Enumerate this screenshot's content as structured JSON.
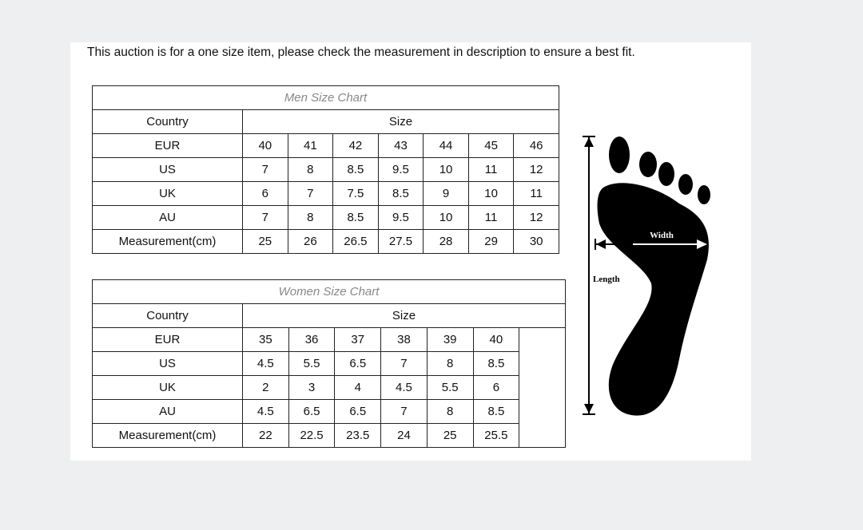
{
  "notice": "This auction is for a one size item, please check the measurement in description to ensure a best fit.",
  "men": {
    "title": "Men Size Chart",
    "country_label": "Country",
    "size_label": "Size",
    "rows": [
      {
        "label": "EUR",
        "values": [
          "40",
          "41",
          "42",
          "43",
          "44",
          "45",
          "46"
        ]
      },
      {
        "label": "US",
        "values": [
          "7",
          "8",
          "8.5",
          "9.5",
          "10",
          "11",
          "12"
        ]
      },
      {
        "label": "UK",
        "values": [
          "6",
          "7",
          "7.5",
          "8.5",
          "9",
          "10",
          "11"
        ]
      },
      {
        "label": "AU",
        "values": [
          "7",
          "8",
          "8.5",
          "9.5",
          "10",
          "11",
          "12"
        ]
      },
      {
        "label": "Measurement(cm)",
        "values": [
          "25",
          "26",
          "26.5",
          "27.5",
          "28",
          "29",
          "30"
        ]
      }
    ]
  },
  "women": {
    "title": "Women Size Chart",
    "country_label": "Country",
    "size_label": "Size",
    "rows": [
      {
        "label": "EUR",
        "values": [
          "35",
          "36",
          "37",
          "38",
          "39",
          "40"
        ]
      },
      {
        "label": "US",
        "values": [
          "4.5",
          "5.5",
          "6.5",
          "7",
          "8",
          "8.5"
        ]
      },
      {
        "label": "UK",
        "values": [
          "2",
          "3",
          "4",
          "4.5",
          "5.5",
          "6"
        ]
      },
      {
        "label": "AU",
        "values": [
          "4.5",
          "6.5",
          "6.5",
          "7",
          "8",
          "8.5"
        ]
      },
      {
        "label": "Measurement(cm)",
        "values": [
          "22",
          "22.5",
          "23.5",
          "24",
          "25",
          "25.5"
        ]
      }
    ]
  },
  "diagram": {
    "width_label": "Width",
    "length_label": "Length"
  }
}
